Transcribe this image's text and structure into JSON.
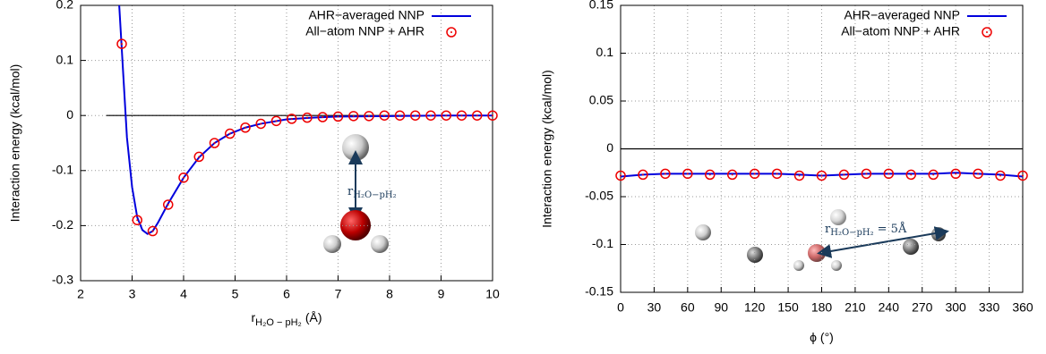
{
  "chart_data": [
    {
      "type": "line",
      "xlabel": "r",
      "xlabel_sub": "H₂O − pH₂",
      "xlabel_unit": "(Å)",
      "ylabel": "Interaction energy (kcal/mol)",
      "xlim": [
        2,
        10
      ],
      "xticks": [
        2,
        3,
        4,
        5,
        6,
        7,
        8,
        9,
        10
      ],
      "ylim": [
        -0.3,
        0.2
      ],
      "yticks": [
        -0.3,
        -0.2,
        -0.1,
        0,
        0.1,
        0.2
      ],
      "grid": true,
      "legend": "top-right",
      "reference_line": {
        "y": 0,
        "from": 2.5,
        "to": 10
      },
      "annotation": {
        "text": "r",
        "sub": "H₂O−pH₂"
      },
      "series": [
        {
          "name": "AHR−averaged NNP",
          "color": "#0000dd",
          "style": "line",
          "x": [
            2.75,
            2.8,
            2.9,
            3.0,
            3.1,
            3.2,
            3.3,
            3.4,
            3.5,
            3.7,
            4.0,
            4.3,
            4.6,
            4.9,
            5.2,
            5.5,
            6.0,
            6.5,
            7.0,
            8.0,
            9.0,
            10.0
          ],
          "values": [
            0.2,
            0.12,
            -0.04,
            -0.13,
            -0.185,
            -0.208,
            -0.215,
            -0.21,
            -0.195,
            -0.16,
            -0.113,
            -0.076,
            -0.05,
            -0.033,
            -0.022,
            -0.015,
            -0.007,
            -0.004,
            -0.002,
            -0.001,
            0,
            0
          ]
        },
        {
          "name": "All−atom NNP + AHR",
          "color": "#ee0000",
          "style": "points",
          "x": [
            2.8,
            3.1,
            3.4,
            3.7,
            4.0,
            4.3,
            4.6,
            4.9,
            5.2,
            5.5,
            5.8,
            6.1,
            6.4,
            6.7,
            7.0,
            7.3,
            7.6,
            7.9,
            8.2,
            8.5,
            8.8,
            9.1,
            9.4,
            9.7,
            10.0
          ],
          "values": [
            0.13,
            -0.19,
            -0.21,
            -0.162,
            -0.113,
            -0.075,
            -0.05,
            -0.033,
            -0.022,
            -0.015,
            -0.01,
            -0.006,
            -0.004,
            -0.003,
            -0.002,
            -0.001,
            -0.001,
            0,
            0,
            0,
            0,
            0,
            0,
            0,
            0
          ]
        }
      ]
    },
    {
      "type": "line",
      "xlabel": "ϕ (°)",
      "ylabel": "Interaction energy (kcal/mol)",
      "xlim": [
        0,
        360
      ],
      "xticks": [
        0,
        30,
        60,
        90,
        120,
        150,
        180,
        210,
        240,
        270,
        300,
        330,
        360
      ],
      "ylim": [
        -0.15,
        0.15
      ],
      "yticks": [
        -0.15,
        -0.1,
        -0.05,
        0,
        0.05,
        0.1,
        0.15
      ],
      "grid": true,
      "legend": "top-right",
      "reference_line": {
        "y": 0,
        "from": 0,
        "to": 360
      },
      "annotation": {
        "text": "r",
        "sub": "H₂O−pH₂",
        "tail": "= 5Å"
      },
      "series": [
        {
          "name": "AHR−averaged NNP",
          "color": "#0000dd",
          "style": "line",
          "x": [
            0,
            20,
            40,
            60,
            80,
            100,
            120,
            140,
            160,
            180,
            200,
            220,
            240,
            260,
            280,
            300,
            320,
            340,
            360
          ],
          "values": [
            -0.029,
            -0.027,
            -0.026,
            -0.026,
            -0.026,
            -0.026,
            -0.026,
            -0.026,
            -0.027,
            -0.028,
            -0.027,
            -0.026,
            -0.026,
            -0.026,
            -0.026,
            -0.025,
            -0.026,
            -0.027,
            -0.029
          ]
        },
        {
          "name": "All−atom NNP + AHR",
          "color": "#ee0000",
          "style": "points",
          "x": [
            0,
            20,
            40,
            60,
            80,
            100,
            120,
            140,
            160,
            180,
            200,
            220,
            240,
            260,
            280,
            300,
            320,
            340,
            360
          ],
          "values": [
            -0.028,
            -0.027,
            -0.026,
            -0.026,
            -0.027,
            -0.027,
            -0.026,
            -0.026,
            -0.028,
            -0.028,
            -0.027,
            -0.026,
            -0.026,
            -0.027,
            -0.027,
            -0.026,
            -0.026,
            -0.028,
            -0.028
          ]
        }
      ]
    }
  ]
}
